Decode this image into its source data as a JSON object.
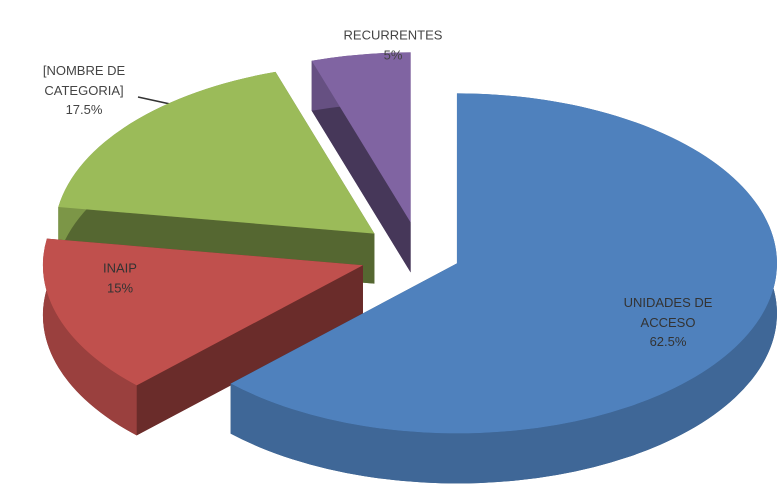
{
  "chart_data": {
    "type": "pie",
    "categories": [
      "UNIDADES DE ACCESO",
      "INAIP",
      "[NOMBRE DE CATEGORIA]",
      "RECURRENTES"
    ],
    "values": [
      62.5,
      15,
      17.5,
      5
    ],
    "value_labels": [
      "62.5%",
      "15%",
      "17.5%",
      "5%"
    ],
    "colors": [
      "#4f81bd",
      "#c0504d",
      "#9bbb59",
      "#8064a2"
    ]
  }
}
